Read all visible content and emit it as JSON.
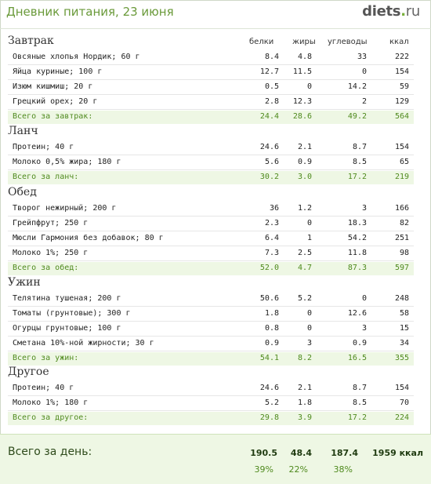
{
  "header": {
    "title": "Дневник питания, 23 июня",
    "logo_main": "diets",
    "logo_dot": ".",
    "logo_tld": "ru"
  },
  "columns": {
    "b": "белки",
    "f": "жиры",
    "c": "углеводы",
    "k": "ккал"
  },
  "sections": [
    {
      "title": "Завтрак",
      "items": [
        {
          "name": "Овсяные хлопья Нордик; 60 г",
          "b": "8.4",
          "f": "4.8",
          "c": "33",
          "k": "222"
        },
        {
          "name": "Яйца куриные; 100 г",
          "b": "12.7",
          "f": "11.5",
          "c": "0",
          "k": "154"
        },
        {
          "name": "Изюм кишмиш; 20 г",
          "b": "0.5",
          "f": "0",
          "c": "14.2",
          "k": "59"
        },
        {
          "name": "Грецкий орех; 20 г",
          "b": "2.8",
          "f": "12.3",
          "c": "2",
          "k": "129"
        }
      ],
      "total": {
        "name": "Всего за завтрак:",
        "b": "24.4",
        "f": "28.6",
        "c": "49.2",
        "k": "564"
      }
    },
    {
      "title": "Ланч",
      "items": [
        {
          "name": "Протеин; 40 г",
          "b": "24.6",
          "f": "2.1",
          "c": "8.7",
          "k": "154"
        },
        {
          "name": "Молоко 0,5% жира; 180 г",
          "b": "5.6",
          "f": "0.9",
          "c": "8.5",
          "k": "65"
        }
      ],
      "total": {
        "name": "Всего за ланч:",
        "b": "30.2",
        "f": "3.0",
        "c": "17.2",
        "k": "219"
      }
    },
    {
      "title": "Обед",
      "items": [
        {
          "name": "Творог нежирный; 200 г",
          "b": "36",
          "f": "1.2",
          "c": "3",
          "k": "166"
        },
        {
          "name": "Грейпфрут; 250 г",
          "b": "2.3",
          "f": "0",
          "c": "18.3",
          "k": "82"
        },
        {
          "name": "Мюсли Гармония без добавок; 80 г",
          "b": "6.4",
          "f": "1",
          "c": "54.2",
          "k": "251"
        },
        {
          "name": "Молоко 1%; 250 г",
          "b": "7.3",
          "f": "2.5",
          "c": "11.8",
          "k": "98"
        }
      ],
      "total": {
        "name": "Всего за обед:",
        "b": "52.0",
        "f": "4.7",
        "c": "87.3",
        "k": "597"
      }
    },
    {
      "title": "Ужин",
      "items": [
        {
          "name": "Телятина тушеная; 200 г",
          "b": "50.6",
          "f": "5.2",
          "c": "0",
          "k": "248"
        },
        {
          "name": "Томаты (грунтовые); 300 г",
          "b": "1.8",
          "f": "0",
          "c": "12.6",
          "k": "58"
        },
        {
          "name": "Огурцы грунтовые; 100 г",
          "b": "0.8",
          "f": "0",
          "c": "3",
          "k": "15"
        },
        {
          "name": "Сметана 10%-ной жирности; 30 г",
          "b": "0.9",
          "f": "3",
          "c": "0.9",
          "k": "34"
        }
      ],
      "total": {
        "name": "Всего за ужин:",
        "b": "54.1",
        "f": "8.2",
        "c": "16.5",
        "k": "355"
      }
    },
    {
      "title": "Другое",
      "items": [
        {
          "name": "Протеин; 40 г",
          "b": "24.6",
          "f": "2.1",
          "c": "8.7",
          "k": "154"
        },
        {
          "name": "Молоко 1%; 180 г",
          "b": "5.2",
          "f": "1.8",
          "c": "8.5",
          "k": "70"
        }
      ],
      "total": {
        "name": "Всего за другое:",
        "b": "29.8",
        "f": "3.9",
        "c": "17.2",
        "k": "224"
      }
    }
  ],
  "day": {
    "label": "Всего за день:",
    "b": "190.5",
    "f": "48.4",
    "c": "187.4",
    "k": "1959 ккал",
    "b_pct": "39%",
    "f_pct": "22%",
    "c_pct": "38%"
  }
}
